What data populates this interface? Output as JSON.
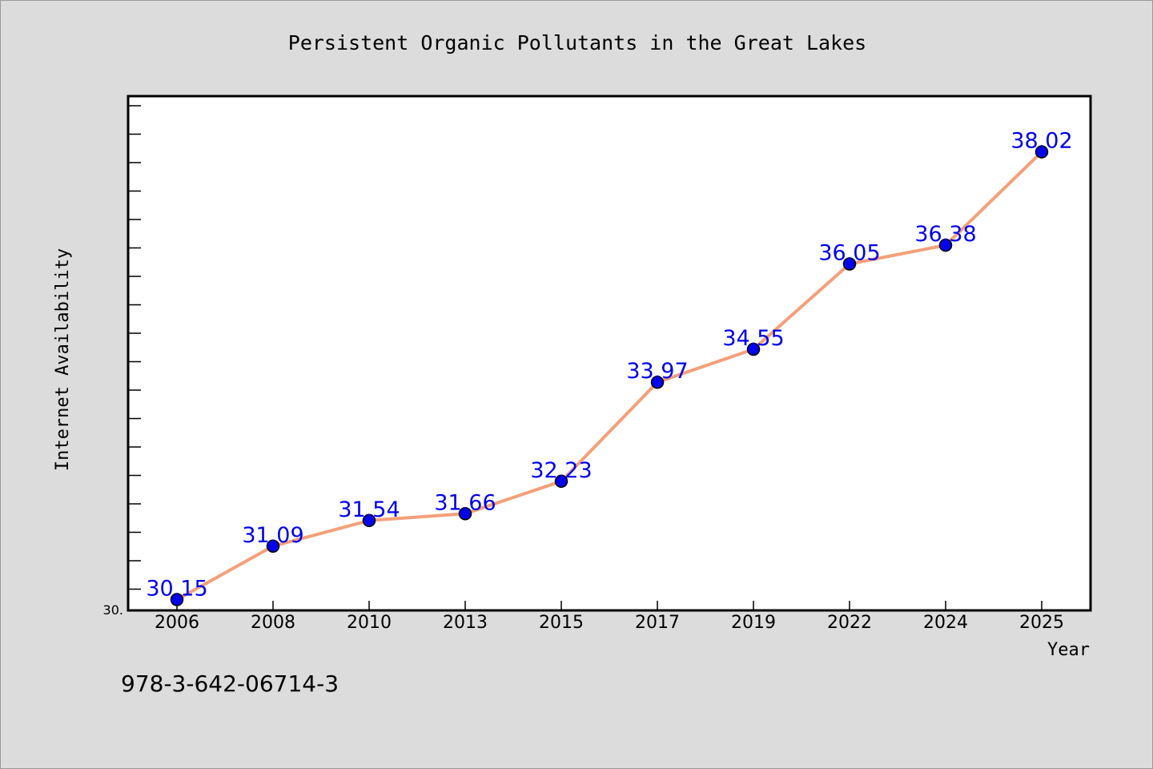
{
  "chart_data": {
    "type": "line",
    "title": "Persistent Organic Pollutants in the Great Lakes",
    "xlabel": "Year",
    "ylabel": "Internet Availability",
    "categories": [
      "2006",
      "2008",
      "2010",
      "2013",
      "2015",
      "2017",
      "2019",
      "2022",
      "2024",
      "2025"
    ],
    "series": [
      {
        "values": [
          30.15,
          31.09,
          31.54,
          31.66,
          32.23,
          33.97,
          34.55,
          36.05,
          36.38,
          38.02
        ]
      }
    ],
    "data_labels": [
      "30.15",
      "31.09",
      "31.54",
      "31.66",
      "32.23",
      "33.97",
      "34.55",
      "36.05",
      "36.38",
      "38.02"
    ],
    "ylim": [
      29.96,
      39.0
    ],
    "y_tick_label": "30.",
    "grid": false,
    "legend": "none"
  },
  "footer_note": "978-3-642-06714-3",
  "colors": {
    "background": "#dcdcdc",
    "plot_background": "#ffffff",
    "line": "#f4a07a",
    "marker": "#0000ee",
    "data_label": "#0000ee",
    "text": "#000000"
  }
}
